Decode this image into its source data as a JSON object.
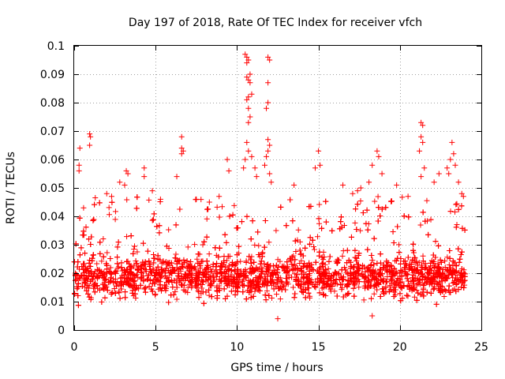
{
  "chart_data": {
    "type": "scatter",
    "title": "Day 197 of 2018, Rate Of TEC Index for receiver vfch",
    "xlabel": "GPS time / hours",
    "ylabel": "ROTI / TECUs",
    "xlim": [
      0,
      25
    ],
    "ylim": [
      0,
      0.1
    ],
    "grid": true,
    "x_ticks": [
      0,
      5,
      10,
      15,
      20,
      25
    ],
    "x_tick_labels": [
      "0",
      "5",
      "10",
      "15",
      "20",
      "25"
    ],
    "y_ticks": [
      0,
      0.01,
      0.02,
      0.03,
      0.04,
      0.05,
      0.06,
      0.07,
      0.08,
      0.09,
      0.1
    ],
    "y_tick_labels": [
      "0",
      "0.01",
      "0.02",
      "0.03",
      "0.04",
      "0.05",
      "0.06",
      "0.07",
      "0.08",
      "0.09",
      "0.1"
    ],
    "marker": "+",
    "color": "#ff0000",
    "data_x_range": [
      0,
      24
    ],
    "series": [
      {
        "name": "ROTI",
        "points": [
          [
            0.3,
            0.058
          ],
          [
            0.3,
            0.056
          ],
          [
            0.35,
            0.064
          ],
          [
            0.95,
            0.069
          ],
          [
            0.95,
            0.065
          ],
          [
            1.0,
            0.068
          ],
          [
            2.0,
            0.048
          ],
          [
            2.3,
            0.047
          ],
          [
            2.8,
            0.052
          ],
          [
            3.1,
            0.051
          ],
          [
            3.2,
            0.056
          ],
          [
            3.3,
            0.055
          ],
          [
            4.3,
            0.057
          ],
          [
            4.3,
            0.054
          ],
          [
            4.8,
            0.049
          ],
          [
            5.3,
            0.046
          ],
          [
            6.3,
            0.054
          ],
          [
            6.6,
            0.068
          ],
          [
            6.6,
            0.064
          ],
          [
            6.7,
            0.063
          ],
          [
            6.6,
            0.062
          ],
          [
            7.5,
            0.046
          ],
          [
            8.3,
            0.045
          ],
          [
            8.9,
            0.047
          ],
          [
            9.4,
            0.06
          ],
          [
            9.5,
            0.056
          ],
          [
            10.5,
            0.097
          ],
          [
            10.6,
            0.096
          ],
          [
            10.7,
            0.095
          ],
          [
            10.6,
            0.094
          ],
          [
            10.8,
            0.09
          ],
          [
            10.6,
            0.089
          ],
          [
            10.7,
            0.088
          ],
          [
            10.8,
            0.087
          ],
          [
            10.9,
            0.083
          ],
          [
            10.7,
            0.082
          ],
          [
            10.6,
            0.081
          ],
          [
            10.7,
            0.078
          ],
          [
            10.8,
            0.075
          ],
          [
            10.7,
            0.073
          ],
          [
            10.6,
            0.066
          ],
          [
            10.7,
            0.063
          ],
          [
            10.9,
            0.061
          ],
          [
            10.5,
            0.06
          ],
          [
            10.4,
            0.057
          ],
          [
            11.9,
            0.096
          ],
          [
            12.0,
            0.095
          ],
          [
            11.9,
            0.087
          ],
          [
            11.9,
            0.08
          ],
          [
            11.8,
            0.078
          ],
          [
            11.9,
            0.067
          ],
          [
            12.0,
            0.065
          ],
          [
            11.9,
            0.063
          ],
          [
            11.8,
            0.061
          ],
          [
            11.7,
            0.058
          ],
          [
            12.0,
            0.055
          ],
          [
            12.1,
            0.052
          ],
          [
            11.1,
            0.057
          ],
          [
            11.2,
            0.054
          ],
          [
            12.5,
            0.004
          ],
          [
            13.5,
            0.051
          ],
          [
            14.8,
            0.057
          ],
          [
            15.0,
            0.063
          ],
          [
            15.1,
            0.058
          ],
          [
            16.5,
            0.051
          ],
          [
            17.1,
            0.048
          ],
          [
            17.4,
            0.049
          ],
          [
            17.6,
            0.05
          ],
          [
            18.1,
            0.052
          ],
          [
            18.3,
            0.058
          ],
          [
            18.6,
            0.063
          ],
          [
            18.7,
            0.061
          ],
          [
            18.3,
            0.005
          ],
          [
            18.9,
            0.055
          ],
          [
            19.8,
            0.051
          ],
          [
            20.5,
            0.047
          ],
          [
            21.3,
            0.073
          ],
          [
            21.4,
            0.072
          ],
          [
            21.3,
            0.068
          ],
          [
            21.4,
            0.066
          ],
          [
            21.2,
            0.063
          ],
          [
            21.5,
            0.057
          ],
          [
            21.3,
            0.054
          ],
          [
            22.1,
            0.052
          ],
          [
            22.4,
            0.055
          ],
          [
            22.9,
            0.057
          ],
          [
            23.2,
            0.066
          ],
          [
            23.3,
            0.062
          ],
          [
            23.1,
            0.06
          ],
          [
            23.4,
            0.058
          ],
          [
            23.0,
            0.055
          ],
          [
            23.6,
            0.052
          ],
          [
            23.8,
            0.048
          ],
          [
            23.9,
            0.047
          ]
        ]
      }
    ]
  }
}
